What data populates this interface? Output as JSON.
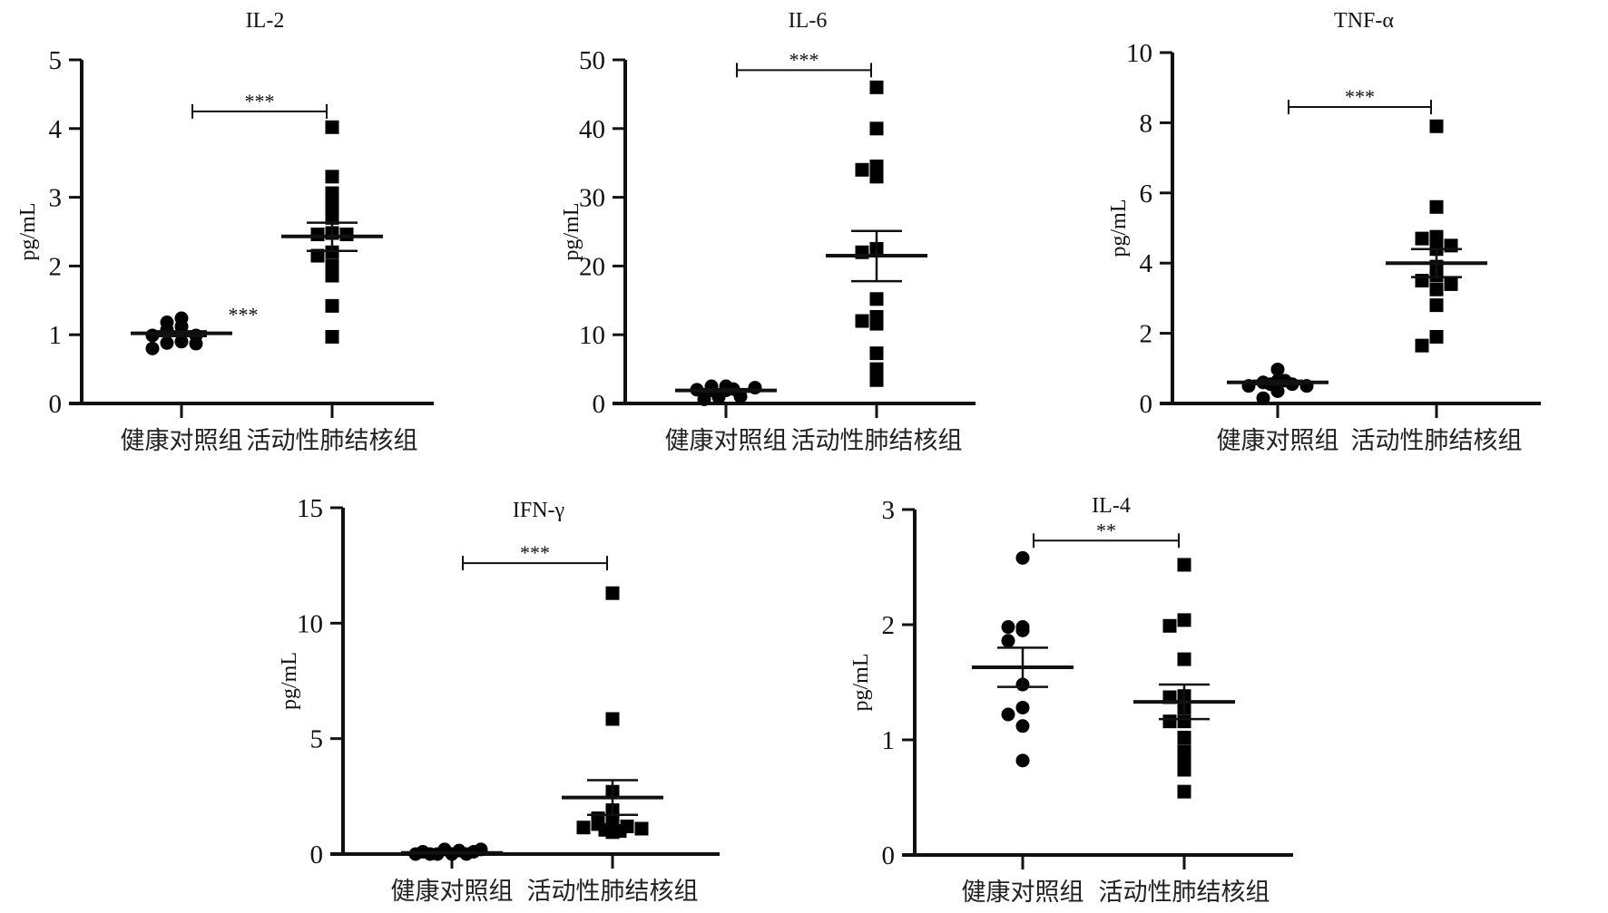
{
  "chart_data": [
    {
      "type": "scatter",
      "title": "IL-2",
      "ylabel": "pg/mL",
      "ylim": [
        0,
        5
      ],
      "yticks": [
        0,
        1,
        2,
        3,
        4,
        5
      ],
      "categories": [
        "健康对照组",
        "活动性肺结核组"
      ],
      "series": [
        {
          "name": "健康对照组",
          "marker": "circle",
          "values": [
            1.24,
            1.18,
            1.12,
            1.07,
            0.99,
            0.99,
            0.9,
            0.88,
            0.87,
            0.8
          ],
          "mean": 1.02,
          "sem": [
            0.98,
            1.05
          ]
        },
        {
          "name": "活动性肺结核组",
          "marker": "square",
          "values": [
            4.02,
            3.3,
            3.06,
            2.88,
            2.7,
            2.48,
            2.46,
            2.46,
            2.2,
            2.15,
            2.0,
            1.86,
            1.42,
            0.97
          ],
          "mean": 2.43,
          "sem": [
            2.22,
            2.63
          ]
        }
      ],
      "significance": {
        "label": "***",
        "y": 4.25
      },
      "annotations": [
        {
          "label": "***",
          "group": 0,
          "y": 1.3
        }
      ]
    },
    {
      "type": "scatter",
      "title": "IL-6",
      "ylabel": "pg/mL",
      "ylim": [
        0,
        50
      ],
      "yticks": [
        0,
        10,
        20,
        30,
        40,
        50
      ],
      "categories": [
        "健康对照组",
        "活动性肺结核组"
      ],
      "series": [
        {
          "name": "健康对照组",
          "marker": "circle",
          "values": [
            1.9,
            1.9,
            1.0,
            2.0,
            2.5,
            2.5,
            2.3,
            0.9,
            2.1,
            0.6
          ],
          "mean": 1.9,
          "sem": [
            1.7,
            2.1
          ]
        },
        {
          "name": "活动性肺结核组",
          "marker": "square",
          "values": [
            46,
            40,
            34.5,
            34,
            33,
            22.5,
            22,
            15.2,
            12.6,
            12,
            11.6,
            7.3,
            5,
            3.4
          ],
          "mean": 21.5,
          "sem": [
            17.8,
            25.1
          ]
        }
      ],
      "significance": {
        "label": "***",
        "y": 48.5
      },
      "annotations": []
    },
    {
      "type": "scatter",
      "title": "TNF-α",
      "ylabel": "pg/mL",
      "ylim": [
        0,
        10
      ],
      "yticks": [
        0,
        2,
        4,
        6,
        8,
        10
      ],
      "categories": [
        "健康对照组",
        "活动性肺结核组"
      ],
      "series": [
        {
          "name": "健康对照组",
          "marker": "circle",
          "values": [
            0.97,
            0.65,
            0.6,
            0.55,
            0.5,
            0.5,
            0.55,
            0.35,
            0.15,
            0.65
          ],
          "mean": 0.6,
          "sem": [
            0.55,
            0.65
          ]
        },
        {
          "name": "活动性肺结核组",
          "marker": "square",
          "values": [
            7.9,
            5.6,
            4.75,
            4.7,
            4.5,
            4.4,
            3.9,
            3.65,
            3.5,
            3.4,
            3.25,
            2.8,
            1.9,
            1.65
          ],
          "mean": 4.0,
          "sem": [
            3.6,
            4.4
          ]
        }
      ],
      "significance": {
        "label": "***",
        "y": 8.45
      },
      "annotations": []
    },
    {
      "type": "scatter",
      "title": "IFN-γ",
      "ylabel": "pg/mL",
      "ylim": [
        0,
        15
      ],
      "yticks": [
        0,
        5,
        10,
        15
      ],
      "categories": [
        "健康对照组",
        "活动性肺结核组"
      ],
      "series": [
        {
          "name": "健康对照组",
          "marker": "circle",
          "values": [
            0,
            0,
            0,
            0.1,
            0.2,
            0.2,
            0.15,
            0,
            0.1,
            0
          ],
          "mean": 0.05,
          "sem": [
            0.02,
            0.08
          ]
        },
        {
          "name": "活动性肺结核组",
          "marker": "square",
          "values": [
            11.3,
            5.85,
            2.7,
            1.9,
            1.55,
            1.35,
            1.3,
            1.2,
            1.15,
            1.1,
            1.05,
            1.0,
            0.95
          ],
          "mean": 2.45,
          "sem": [
            1.7,
            3.2
          ]
        }
      ],
      "significance": {
        "label": "***",
        "y": 12.6
      },
      "annotations": []
    },
    {
      "type": "scatter",
      "title": "IL-4",
      "ylabel": "pg/mL",
      "ylim": [
        0,
        3
      ],
      "yticks": [
        0,
        1,
        2,
        3
      ],
      "categories": [
        "健康对照组",
        "活动性肺结核组"
      ],
      "series": [
        {
          "name": "健康对照组",
          "marker": "circle",
          "values": [
            2.58,
            1.98,
            1.98,
            1.95,
            1.86,
            1.48,
            1.28,
            1.22,
            1.12,
            0.82
          ],
          "mean": 1.63,
          "sem": [
            1.46,
            1.8
          ]
        },
        {
          "name": "活动性肺结核组",
          "marker": "square",
          "values": [
            2.52,
            2.04,
            1.99,
            1.7,
            1.38,
            1.37,
            1.28,
            1.16,
            1.16,
            1.02,
            0.9,
            0.84,
            0.74,
            0.55
          ],
          "mean": 1.33,
          "sem": [
            1.18,
            1.48
          ]
        }
      ],
      "significance": {
        "label": "**",
        "y": 2.73
      },
      "annotations": []
    }
  ]
}
